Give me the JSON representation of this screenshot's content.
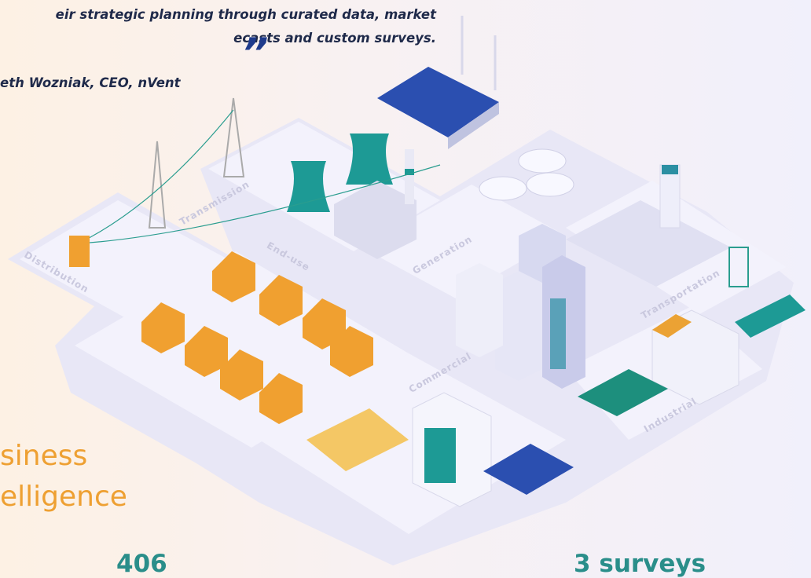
{
  "quote": {
    "lines": [
      "eir strategic planning through curated data, market",
      "ecasts and custom surveys."
    ],
    "attribution": "eth Wozniak, CEO, nVent"
  },
  "illustration": {
    "zones": [
      "Transmission",
      "Distribution",
      "End-use",
      "Generation",
      "Commercial",
      "Transportation",
      "Industrial"
    ]
  },
  "heading": [
    "siness",
    "elligence"
  ],
  "stats": [
    "406",
    "3 surveys"
  ]
}
